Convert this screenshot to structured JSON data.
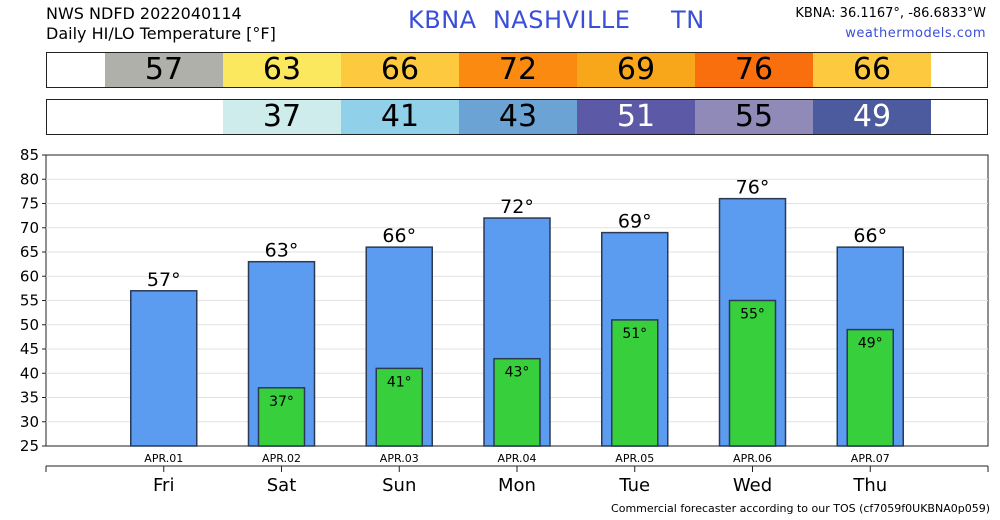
{
  "header": {
    "line1": "NWS NDFD 2022040114",
    "line2": "Daily HI/LO Temperature [°F]",
    "station": "KBNA  NASHVILLE     TN",
    "coords": "KBNA: 36.1167°, -86.6833°W",
    "site": "weathermodels.com"
  },
  "strips": {
    "hi": [
      {
        "text": "57",
        "color": "#b0b0ab",
        "text_color": "#000000"
      },
      {
        "text": "63",
        "color": "#fbe85e",
        "text_color": "#000000"
      },
      {
        "text": "66",
        "color": "#fcc93f",
        "text_color": "#000000"
      },
      {
        "text": "72",
        "color": "#fb8a10",
        "text_color": "#000000"
      },
      {
        "text": "69",
        "color": "#f9a71a",
        "text_color": "#000000"
      },
      {
        "text": "76",
        "color": "#f96e0d",
        "text_color": "#000000"
      },
      {
        "text": "66",
        "color": "#fcc93f",
        "text_color": "#000000"
      }
    ],
    "lo": [
      {
        "text": "37",
        "color": "#cdeceb",
        "text_color": "#000000"
      },
      {
        "text": "41",
        "color": "#90d0e8",
        "text_color": "#000000"
      },
      {
        "text": "43",
        "color": "#6ba3d4",
        "text_color": "#000000"
      },
      {
        "text": "51",
        "color": "#5c5aa6",
        "text_color": "#ffffff"
      },
      {
        "text": "55",
        "color": "#8f8ab8",
        "text_color": "#000000"
      },
      {
        "text": "49",
        "color": "#4b5b9e",
        "text_color": "#ffffff"
      }
    ]
  },
  "chart_data": {
    "type": "bar",
    "categories": [
      "APR.01",
      "APR.02",
      "APR.03",
      "APR.04",
      "APR.05",
      "APR.06",
      "APR.07"
    ],
    "weekdays": [
      "Fri",
      "Sat",
      "Sun",
      "Mon",
      "Tue",
      "Wed",
      "Thu"
    ],
    "series": [
      {
        "values": [
          57,
          63,
          66,
          72,
          69,
          76,
          66
        ],
        "color": "#5b9bf0",
        "labels": [
          "57°",
          "63°",
          "66°",
          "72°",
          "69°",
          "76°",
          "66°"
        ]
      },
      {
        "values": [
          null,
          37,
          41,
          43,
          51,
          55,
          49
        ],
        "color": "#37d03c",
        "labels": [
          "",
          "37°",
          "41°",
          "43°",
          "51°",
          "55°",
          "49°"
        ]
      }
    ],
    "ylim": [
      25,
      85
    ],
    "yticks": [
      25,
      30,
      35,
      40,
      45,
      50,
      55,
      60,
      65,
      70,
      75,
      80,
      85
    ],
    "grid": true
  },
  "footer": "Commercial forecaster according to our TOS (cf7059f0UKBNA0p059)"
}
